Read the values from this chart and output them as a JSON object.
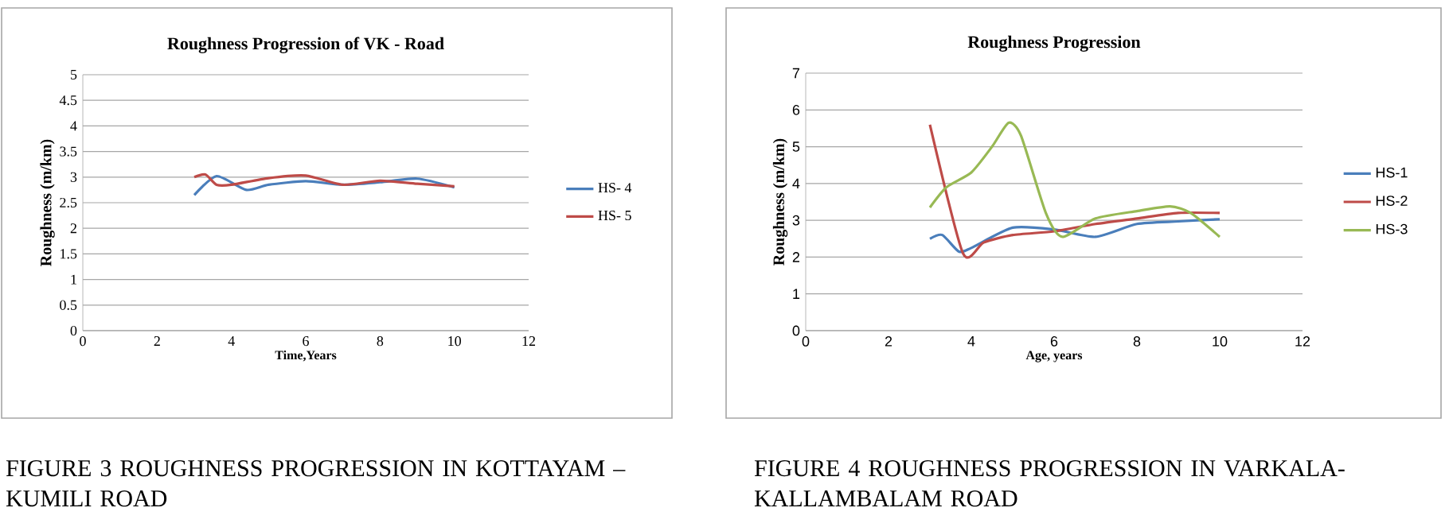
{
  "chart_data": [
    {
      "type": "line",
      "title": "Roughness Progression of VK - Road",
      "xlabel": "Time,Years",
      "ylabel": "Roughness (m/km)",
      "xlim": [
        0,
        12
      ],
      "xticks": [
        0,
        2,
        4,
        6,
        8,
        10,
        12
      ],
      "ylim": [
        0,
        5
      ],
      "yticks": [
        0,
        0.5,
        1,
        1.5,
        2,
        2.5,
        3,
        3.5,
        4,
        4.5,
        5
      ],
      "grid": "y",
      "legend": "right",
      "marker": "none",
      "line_style": "solid",
      "series": [
        {
          "name": "HS- 4",
          "color": "#4a7ebb",
          "x": [
            3,
            3.6,
            4.4,
            5,
            6,
            7,
            8,
            9,
            10
          ],
          "values": [
            2.65,
            3.02,
            2.75,
            2.85,
            2.92,
            2.85,
            2.9,
            2.97,
            2.8
          ]
        },
        {
          "name": "HS- 5",
          "color": "#be4b48",
          "x": [
            3,
            3.3,
            3.6,
            4,
            5,
            6,
            7,
            8,
            9,
            10
          ],
          "values": [
            3.0,
            3.05,
            2.85,
            2.85,
            2.98,
            3.03,
            2.85,
            2.93,
            2.87,
            2.82
          ]
        }
      ],
      "annotations": [
        "FIGURE 3  ROUGHNESS PROGRESSION IN KOTTAYAM – KUMILI ROAD"
      ]
    },
    {
      "type": "line",
      "title": "Roughness Progression",
      "xlabel": "Age, years",
      "ylabel": "Roughness (m/km)",
      "xlim": [
        0,
        12
      ],
      "xticks": [
        0,
        2,
        4,
        6,
        8,
        10,
        12
      ],
      "ylim": [
        0,
        7
      ],
      "yticks": [
        0,
        1,
        2,
        3,
        4,
        5,
        6,
        7
      ],
      "grid": "y",
      "legend": "right",
      "marker": "none",
      "line_style": "solid",
      "series": [
        {
          "name": "HS-1",
          "color": "#4a7ebb",
          "x": [
            3,
            3.3,
            3.7,
            4,
            5,
            6,
            7,
            8,
            9,
            10
          ],
          "values": [
            2.5,
            2.6,
            2.15,
            2.25,
            2.8,
            2.75,
            2.55,
            2.9,
            2.97,
            3.03
          ]
        },
        {
          "name": "HS-2",
          "color": "#be4b48",
          "x": [
            3,
            3.8,
            4.3,
            5,
            6,
            7,
            8,
            9,
            10
          ],
          "values": [
            5.6,
            2.1,
            2.4,
            2.6,
            2.7,
            2.9,
            3.05,
            3.2,
            3.2
          ]
        },
        {
          "name": "HS-3",
          "color": "#98b954",
          "x": [
            3,
            3.4,
            4,
            4.5,
            4.9,
            5.2,
            5.8,
            6.2,
            7,
            8,
            8.8,
            9.3,
            10
          ],
          "values": [
            3.35,
            3.9,
            4.3,
            5.0,
            5.65,
            5.3,
            3.2,
            2.55,
            3.05,
            3.25,
            3.38,
            3.2,
            2.55
          ]
        }
      ],
      "annotations": [
        "FIGURE 4 ROUGHNESS PROGRESSION IN VARKALA- KALLAMBALAM ROAD"
      ]
    }
  ]
}
